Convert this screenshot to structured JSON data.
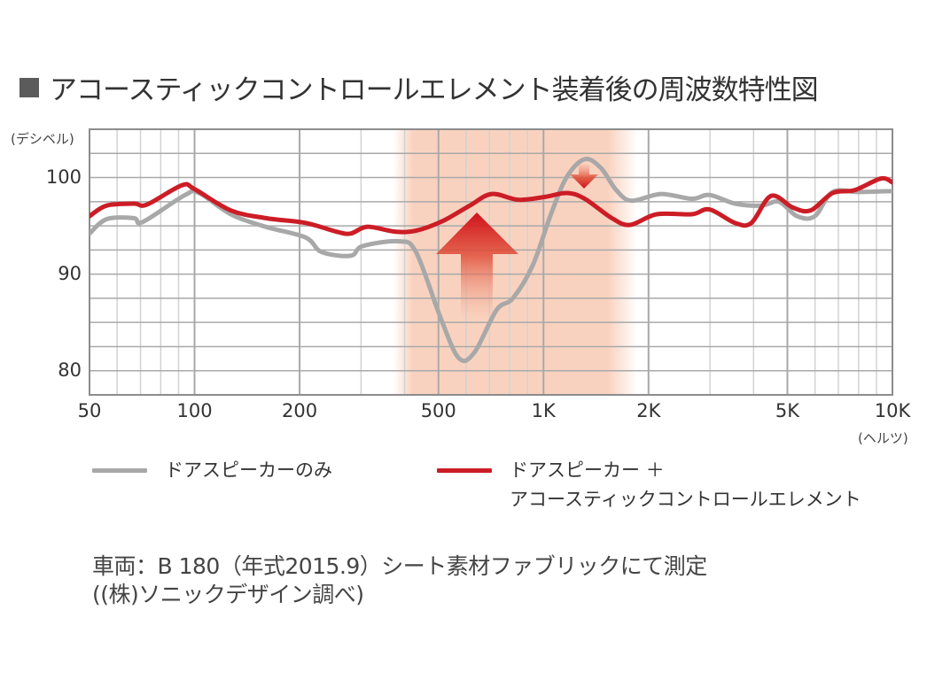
{
  "title": {
    "marker": "■",
    "text": "アコースティックコントロールエレメント装着後の周波数特性図"
  },
  "axes": {
    "y_unit": "(デシベル)",
    "x_unit": "(ヘルツ)",
    "y_ticks": [
      {
        "value": 100,
        "label": "100"
      },
      {
        "value": 90,
        "label": "90"
      },
      {
        "value": 80,
        "label": "80"
      }
    ],
    "x_ticks": [
      {
        "value": 50,
        "label": "50"
      },
      {
        "value": 100,
        "label": "100"
      },
      {
        "value": 200,
        "label": "200"
      },
      {
        "value": 500,
        "label": "500"
      },
      {
        "value": 1000,
        "label": "1K"
      },
      {
        "value": 2000,
        "label": "2K"
      },
      {
        "value": 5000,
        "label": "5K"
      },
      {
        "value": 10000,
        "label": "10K"
      }
    ]
  },
  "legend": [
    {
      "name": "door_speaker_only",
      "label_lines": [
        "ドアスピーカーのみ"
      ],
      "color": "#a8a8a8"
    },
    {
      "name": "door_speaker_plus_ace",
      "label_lines": [
        "ドアスピーカー ＋",
        "アコースティックコントロールエレメント"
      ],
      "color": "#cc1d26"
    }
  ],
  "note": {
    "line1": "車両：B 180（年式2015.9）シート素材ファブリックにて測定",
    "line2": "((株)ソニックデザイン調べ)"
  },
  "colors": {
    "grid_major": "#a9a9a9",
    "grid_minor": "#d2d2d2",
    "frame": "#8c8c8c",
    "highlight": "#f9d2bf",
    "arrow": "#d42a23",
    "gray_series": "#a8a8a8",
    "red_series": "#cc1d26"
  },
  "chart_data": {
    "type": "line",
    "title": "アコースティックコントロールエレメント装着後の周波数特性図",
    "xlabel": "(ヘルツ)",
    "ylabel": "(デシベル)",
    "xscale": "log",
    "xlim": [
      50,
      10000
    ],
    "ylim": [
      77.5,
      105
    ],
    "grid": true,
    "y_grid_step": 2.5,
    "legend_position": "bottom",
    "highlight_band_hz": [
      380,
      1750
    ],
    "annotations": [
      {
        "type": "arrow-up",
        "x_hz": 640,
        "from_db": 85,
        "to_db": 96.3,
        "meaning": "boost of midrange dip"
      },
      {
        "type": "arrow-down",
        "x_hz": 1320,
        "from_db": 101.3,
        "to_db": 99.0,
        "meaning": "suppression of peak"
      }
    ],
    "series": [
      {
        "name": "ドアスピーカーのみ",
        "color": "#a8a8a8",
        "points": [
          [
            50,
            94.2
          ],
          [
            56,
            95.7
          ],
          [
            67,
            95.8
          ],
          [
            71,
            95.4
          ],
          [
            94,
            98.2
          ],
          [
            103,
            98.4
          ],
          [
            127,
            96.2
          ],
          [
            160,
            94.9
          ],
          [
            208,
            93.8
          ],
          [
            231,
            92.3
          ],
          [
            280,
            91.9
          ],
          [
            303,
            92.9
          ],
          [
            384,
            93.4
          ],
          [
            431,
            92.3
          ],
          [
            508,
            85.4
          ],
          [
            572,
            81.3
          ],
          [
            634,
            81.9
          ],
          [
            734,
            86.3
          ],
          [
            817,
            87.5
          ],
          [
            931,
            90.9
          ],
          [
            1055,
            96.4
          ],
          [
            1168,
            100.1
          ],
          [
            1313,
            101.9
          ],
          [
            1460,
            101.0
          ],
          [
            1616,
            98.7
          ],
          [
            1787,
            97.6
          ],
          [
            2170,
            98.3
          ],
          [
            2660,
            97.8
          ],
          [
            2990,
            98.2
          ],
          [
            3540,
            97.3
          ],
          [
            4220,
            97.1
          ],
          [
            4730,
            97.5
          ],
          [
            5330,
            96.0
          ],
          [
            5990,
            96.0
          ],
          [
            6740,
            98.5
          ],
          [
            8020,
            98.5
          ],
          [
            10000,
            98.6
          ]
        ]
      },
      {
        "name": "ドアスピーカー ＋ アコースティックコントロールエレメント",
        "color": "#cc1d26",
        "points": [
          [
            50,
            96.0
          ],
          [
            56,
            97.1
          ],
          [
            67,
            97.3
          ],
          [
            73,
            97.2
          ],
          [
            92,
            99.2
          ],
          [
            100,
            98.8
          ],
          [
            127,
            96.6
          ],
          [
            160,
            95.8
          ],
          [
            208,
            95.3
          ],
          [
            255,
            94.4
          ],
          [
            280,
            94.2
          ],
          [
            313,
            94.9
          ],
          [
            375,
            94.4
          ],
          [
            431,
            94.5
          ],
          [
            514,
            95.5
          ],
          [
            615,
            97.1
          ],
          [
            710,
            98.3
          ],
          [
            846,
            97.7
          ],
          [
            1010,
            98.0
          ],
          [
            1168,
            98.4
          ],
          [
            1313,
            97.8
          ],
          [
            1570,
            95.8
          ],
          [
            1770,
            95.1
          ],
          [
            2110,
            96.2
          ],
          [
            2660,
            96.2
          ],
          [
            2990,
            96.7
          ],
          [
            3540,
            95.3
          ],
          [
            3940,
            95.3
          ],
          [
            4490,
            98.1
          ],
          [
            5180,
            96.9
          ],
          [
            5830,
            96.6
          ],
          [
            6740,
            98.4
          ],
          [
            7790,
            98.7
          ],
          [
            9270,
            99.9
          ],
          [
            10000,
            99.5
          ]
        ]
      }
    ]
  }
}
